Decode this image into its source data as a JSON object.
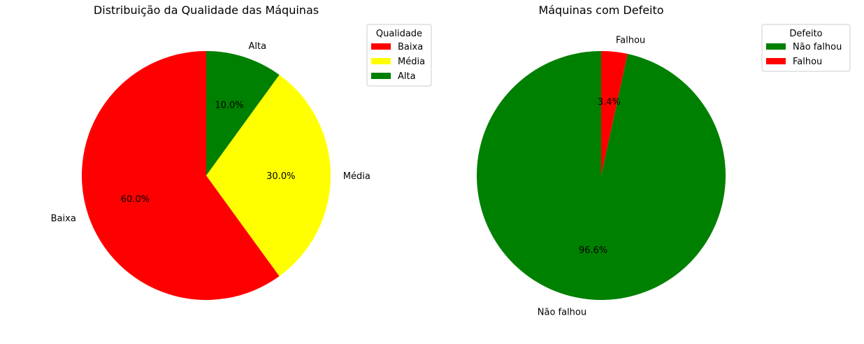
{
  "chart_data": [
    {
      "type": "pie",
      "title": "Distribuição da Qualidade das Máquinas",
      "categories": [
        "Baixa",
        "Média",
        "Alta"
      ],
      "values": [
        60.0,
        30.0,
        10.0
      ],
      "value_labels": [
        "60.0%",
        "30.0%",
        "10.0%"
      ],
      "colors": [
        "#ff0000",
        "#ffff00",
        "#008000"
      ],
      "start_angle_deg": 90,
      "direction": "counterclockwise",
      "legend": {
        "title": "Qualidade",
        "placement": "top-right",
        "entries": [
          "Baixa",
          "Média",
          "Alta"
        ]
      }
    },
    {
      "type": "pie",
      "title": "Máquinas com Defeito",
      "categories": [
        "Não falhou",
        "Falhou"
      ],
      "values": [
        96.6,
        3.4
      ],
      "value_labels": [
        "96.6%",
        "3.4%"
      ],
      "colors": [
        "#008000",
        "#ff0000"
      ],
      "start_angle_deg": 90,
      "direction": "counterclockwise",
      "legend": {
        "title": "Defeito",
        "placement": "top-right",
        "entries": [
          "Não falhou",
          "Falhou"
        ]
      }
    }
  ]
}
